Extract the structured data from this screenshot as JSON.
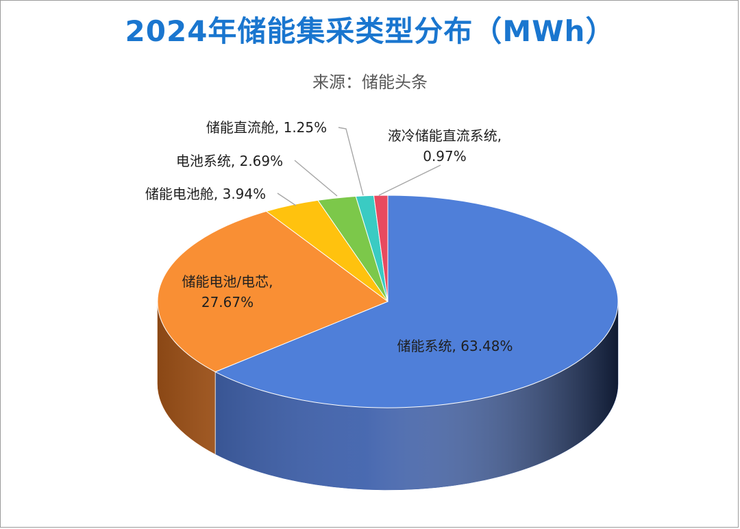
{
  "title": "2024年储能集采类型分布（MWh）",
  "source": "来源：储能头条",
  "chart_data": {
    "type": "pie",
    "style": "3d",
    "legend": "none",
    "slices": [
      {
        "name": "储能系统",
        "value": 63.48,
        "label_lines": [
          "储能系统, 63.48%"
        ],
        "color": "#4f7fd9",
        "side_color": "#3559a8"
      },
      {
        "name": "储能电池/电芯",
        "value": 27.67,
        "label_lines": [
          "储能电池/电芯,",
          "27.67%"
        ],
        "color": "#f98f34",
        "side_color": "#b85f1c"
      },
      {
        "name": "储能电池舱",
        "value": 3.94,
        "label_lines": [
          "储能电池舱, 3.94%"
        ],
        "color": "#ffc20e",
        "side_color": "#b88a00"
      },
      {
        "name": "电池系统",
        "value": 2.69,
        "label_lines": [
          "电池系统, 2.69%"
        ],
        "color": "#7cc84a",
        "side_color": "#568c32"
      },
      {
        "name": "储能直流舱",
        "value": 1.25,
        "label_lines": [
          "储能直流舱, 1.25%"
        ],
        "color": "#3acbc3",
        "side_color": "#268f8a"
      },
      {
        "name": "液冷储能直流系统",
        "value": 0.97,
        "label_lines": [
          "液冷储能直流系统,",
          "0.97%"
        ],
        "color": "#e84a5f",
        "side_color": "#a8303f"
      }
    ]
  }
}
